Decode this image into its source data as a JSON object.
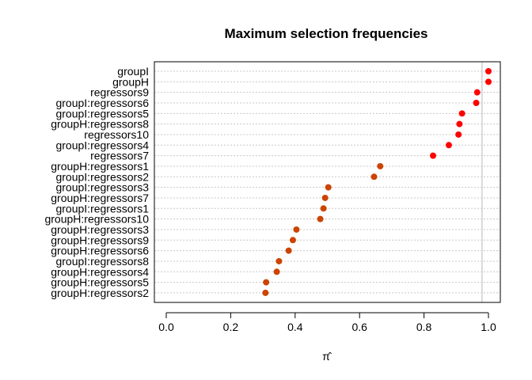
{
  "chart_data": {
    "type": "scatter",
    "title": "Maximum selection frequencies",
    "xlabel": "π̂",
    "ylabel": "",
    "xlim": [
      0,
      1
    ],
    "xticks": [
      "0.0",
      "0.2",
      "0.4",
      "0.6",
      "0.8",
      "1.0"
    ],
    "reference_line_x": 0.98,
    "grid": "horizontal dotted",
    "colors": {
      "high": "#ff0000",
      "low": "#cc4400"
    },
    "points": [
      {
        "label": "groupI",
        "value": 1.0
      },
      {
        "label": "groupH",
        "value": 1.0
      },
      {
        "label": "regressors9",
        "value": 0.965
      },
      {
        "label": "groupI:regressors6",
        "value": 0.962
      },
      {
        "label": "groupI:regressors5",
        "value": 0.918
      },
      {
        "label": "groupH:regressors8",
        "value": 0.91
      },
      {
        "label": "regressors10",
        "value": 0.907
      },
      {
        "label": "groupI:regressors4",
        "value": 0.877
      },
      {
        "label": "regressors7",
        "value": 0.828
      },
      {
        "label": "groupH:regressors1",
        "value": 0.664
      },
      {
        "label": "groupI:regressors2",
        "value": 0.645
      },
      {
        "label": "groupI:regressors3",
        "value": 0.503
      },
      {
        "label": "groupH:regressors7",
        "value": 0.493
      },
      {
        "label": "groupI:regressors1",
        "value": 0.488
      },
      {
        "label": "groupH:regressors10",
        "value": 0.478
      },
      {
        "label": "groupH:regressors3",
        "value": 0.404
      },
      {
        "label": "groupH:regressors9",
        "value": 0.393
      },
      {
        "label": "groupH:regressors6",
        "value": 0.38
      },
      {
        "label": "groupI:regressors8",
        "value": 0.35
      },
      {
        "label": "groupH:regressors4",
        "value": 0.343
      },
      {
        "label": "groupH:regressors5",
        "value": 0.31
      },
      {
        "label": "groupH:regressors2",
        "value": 0.308
      }
    ]
  }
}
